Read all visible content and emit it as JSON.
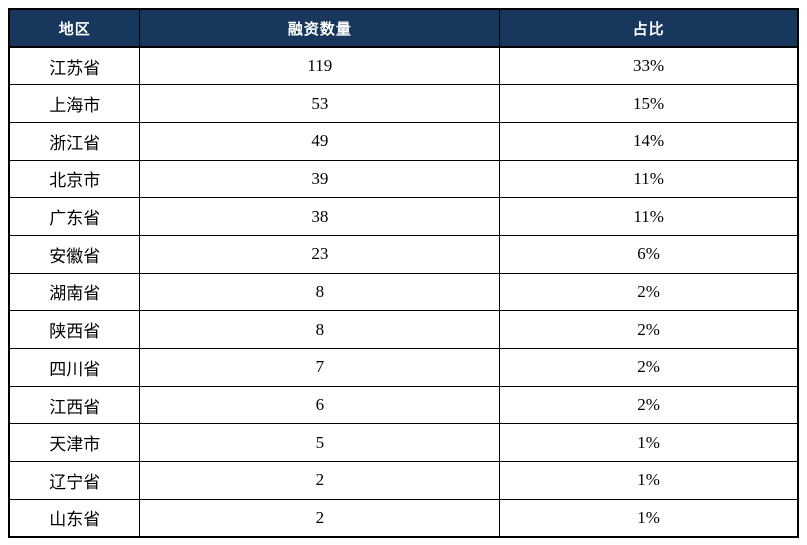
{
  "chart_data": {
    "type": "table",
    "columns": [
      "地区",
      "融资数量",
      "占比"
    ],
    "rows": [
      [
        "江苏省",
        119,
        "33%"
      ],
      [
        "上海市",
        53,
        "15%"
      ],
      [
        "浙江省",
        49,
        "14%"
      ],
      [
        "北京市",
        39,
        "11%"
      ],
      [
        "广东省",
        38,
        "11%"
      ],
      [
        "安徽省",
        23,
        "6%"
      ],
      [
        "湖南省",
        8,
        "2%"
      ],
      [
        "陕西省",
        8,
        "2%"
      ],
      [
        "四川省",
        7,
        "2%"
      ],
      [
        "江西省",
        6,
        "2%"
      ],
      [
        "天津市",
        5,
        "1%"
      ],
      [
        "辽宁省",
        2,
        "1%"
      ],
      [
        "山东省",
        2,
        "1%"
      ]
    ]
  },
  "colors": {
    "header_bg": "#17375D",
    "header_text": "#FFFFFF",
    "border": "#000000",
    "body_text": "#000000",
    "page_bg": "#FFFFFF"
  }
}
